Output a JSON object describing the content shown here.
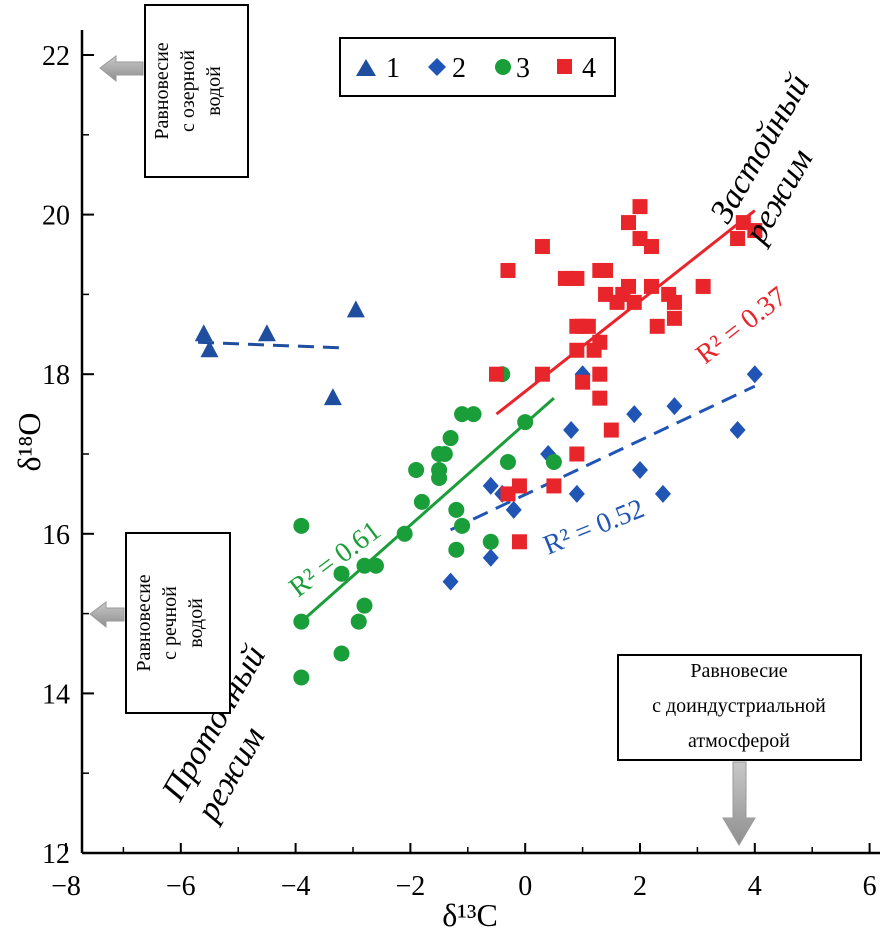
{
  "chart_data": {
    "type": "scatter",
    "xlabel": "δ¹³C",
    "ylabel": "δ¹⁸O",
    "xlim": [
      -8,
      6
    ],
    "ylim": [
      12,
      22.5
    ],
    "x_ticks": [
      "−8",
      "−6",
      "−4",
      "−2",
      "0",
      "2",
      "4",
      "6"
    ],
    "y_ticks": [
      "12",
      "14",
      "16",
      "18",
      "20",
      "22"
    ],
    "grid": false,
    "legend_position": "top",
    "colors": {
      "s1": "#1f4e9e",
      "s2": "#2055b5",
      "s3": "#1a9e3a",
      "s4": "#e8252a",
      "arrow": "#a6a6a6"
    },
    "series": [
      {
        "name": "1",
        "marker": "triangle",
        "points": [
          [
            -5.6,
            18.5
          ],
          [
            -5.5,
            18.3
          ],
          [
            -4.5,
            18.5
          ],
          [
            -3.35,
            17.7
          ],
          [
            -2.95,
            18.8
          ]
        ],
        "trend": [
          [
            -5.7,
            18.4
          ],
          [
            -3.2,
            18.33
          ]
        ]
      },
      {
        "name": "2",
        "marker": "diamond",
        "points": [
          [
            -1.3,
            15.4
          ],
          [
            -0.6,
            15.7
          ],
          [
            -0.6,
            16.6
          ],
          [
            -0.4,
            16.5
          ],
          [
            -0.2,
            16.3
          ],
          [
            0.4,
            17.0
          ],
          [
            0.8,
            17.3
          ],
          [
            0.9,
            16.5
          ],
          [
            1.0,
            18.0
          ],
          [
            1.9,
            17.5
          ],
          [
            2.0,
            16.8
          ],
          [
            2.4,
            16.5
          ],
          [
            2.6,
            17.6
          ],
          [
            3.7,
            17.3
          ],
          [
            4.0,
            18.0
          ]
        ],
        "trend": [
          [
            -1.3,
            16.05
          ],
          [
            4.0,
            17.85
          ]
        ],
        "r2": "R² = 0.52"
      },
      {
        "name": "3",
        "marker": "circle",
        "points": [
          [
            -3.9,
            16.1
          ],
          [
            -3.9,
            14.9
          ],
          [
            -3.9,
            14.2
          ],
          [
            -3.2,
            15.5
          ],
          [
            -3.2,
            14.5
          ],
          [
            -2.9,
            14.9
          ],
          [
            -2.8,
            15.6
          ],
          [
            -2.8,
            15.1
          ],
          [
            -2.6,
            15.6
          ],
          [
            -2.1,
            16.0
          ],
          [
            -1.9,
            16.8
          ],
          [
            -1.8,
            16.4
          ],
          [
            -1.5,
            17.0
          ],
          [
            -1.5,
            16.7
          ],
          [
            -1.5,
            16.8
          ],
          [
            -1.4,
            17.0
          ],
          [
            -1.3,
            17.2
          ],
          [
            -1.2,
            16.3
          ],
          [
            -1.2,
            15.8
          ],
          [
            -1.1,
            17.5
          ],
          [
            -1.1,
            16.1
          ],
          [
            -0.9,
            17.5
          ],
          [
            -0.6,
            15.9
          ],
          [
            -0.4,
            18.0
          ],
          [
            -0.3,
            16.9
          ],
          [
            0.0,
            17.4
          ],
          [
            0.5,
            16.9
          ]
        ],
        "trend": [
          [
            -3.9,
            14.9
          ],
          [
            0.5,
            17.7
          ]
        ],
        "r2": "R² = 0.61"
      },
      {
        "name": "4",
        "marker": "square",
        "points": [
          [
            -0.5,
            18.0
          ],
          [
            -0.3,
            16.5
          ],
          [
            -0.3,
            19.3
          ],
          [
            -0.1,
            15.9
          ],
          [
            -0.1,
            16.6
          ],
          [
            0.3,
            19.6
          ],
          [
            0.3,
            18.0
          ],
          [
            0.5,
            16.6
          ],
          [
            0.7,
            19.2
          ],
          [
            0.8,
            19.2
          ],
          [
            0.9,
            19.2
          ],
          [
            0.9,
            18.6
          ],
          [
            0.9,
            18.3
          ],
          [
            0.9,
            17.0
          ],
          [
            1.0,
            18.6
          ],
          [
            1.0,
            17.9
          ],
          [
            1.1,
            18.6
          ],
          [
            1.2,
            18.3
          ],
          [
            1.3,
            19.3
          ],
          [
            1.3,
            18.4
          ],
          [
            1.3,
            18.0
          ],
          [
            1.3,
            17.7
          ],
          [
            1.4,
            19.0
          ],
          [
            1.4,
            19.3
          ],
          [
            1.5,
            17.3
          ],
          [
            1.6,
            18.9
          ],
          [
            1.7,
            19.0
          ],
          [
            1.8,
            19.9
          ],
          [
            1.8,
            19.1
          ],
          [
            1.9,
            18.9
          ],
          [
            2.0,
            20.1
          ],
          [
            2.0,
            19.7
          ],
          [
            2.2,
            19.6
          ],
          [
            2.2,
            19.1
          ],
          [
            2.3,
            18.6
          ],
          [
            2.5,
            19.0
          ],
          [
            2.6,
            18.9
          ],
          [
            2.6,
            18.7
          ],
          [
            3.1,
            19.1
          ],
          [
            3.7,
            19.7
          ],
          [
            3.8,
            19.9
          ],
          [
            4.0,
            19.8
          ]
        ],
        "trend": [
          [
            -0.5,
            17.5
          ],
          [
            4.0,
            20.05
          ]
        ],
        "r2": "R² = 0.37"
      }
    ],
    "annotations": {
      "lake_box": [
        "Равновесие",
        "с озерной",
        "водой"
      ],
      "river_box": [
        "Равновесие",
        "с речной",
        "водой"
      ],
      "atm_box": [
        "Равновесие",
        "с доиндустриальной",
        "атмосферой"
      ],
      "stagnant_regime": [
        "Застойный",
        "режим"
      ],
      "flow_regime": [
        "Проточный",
        "режим"
      ]
    }
  }
}
